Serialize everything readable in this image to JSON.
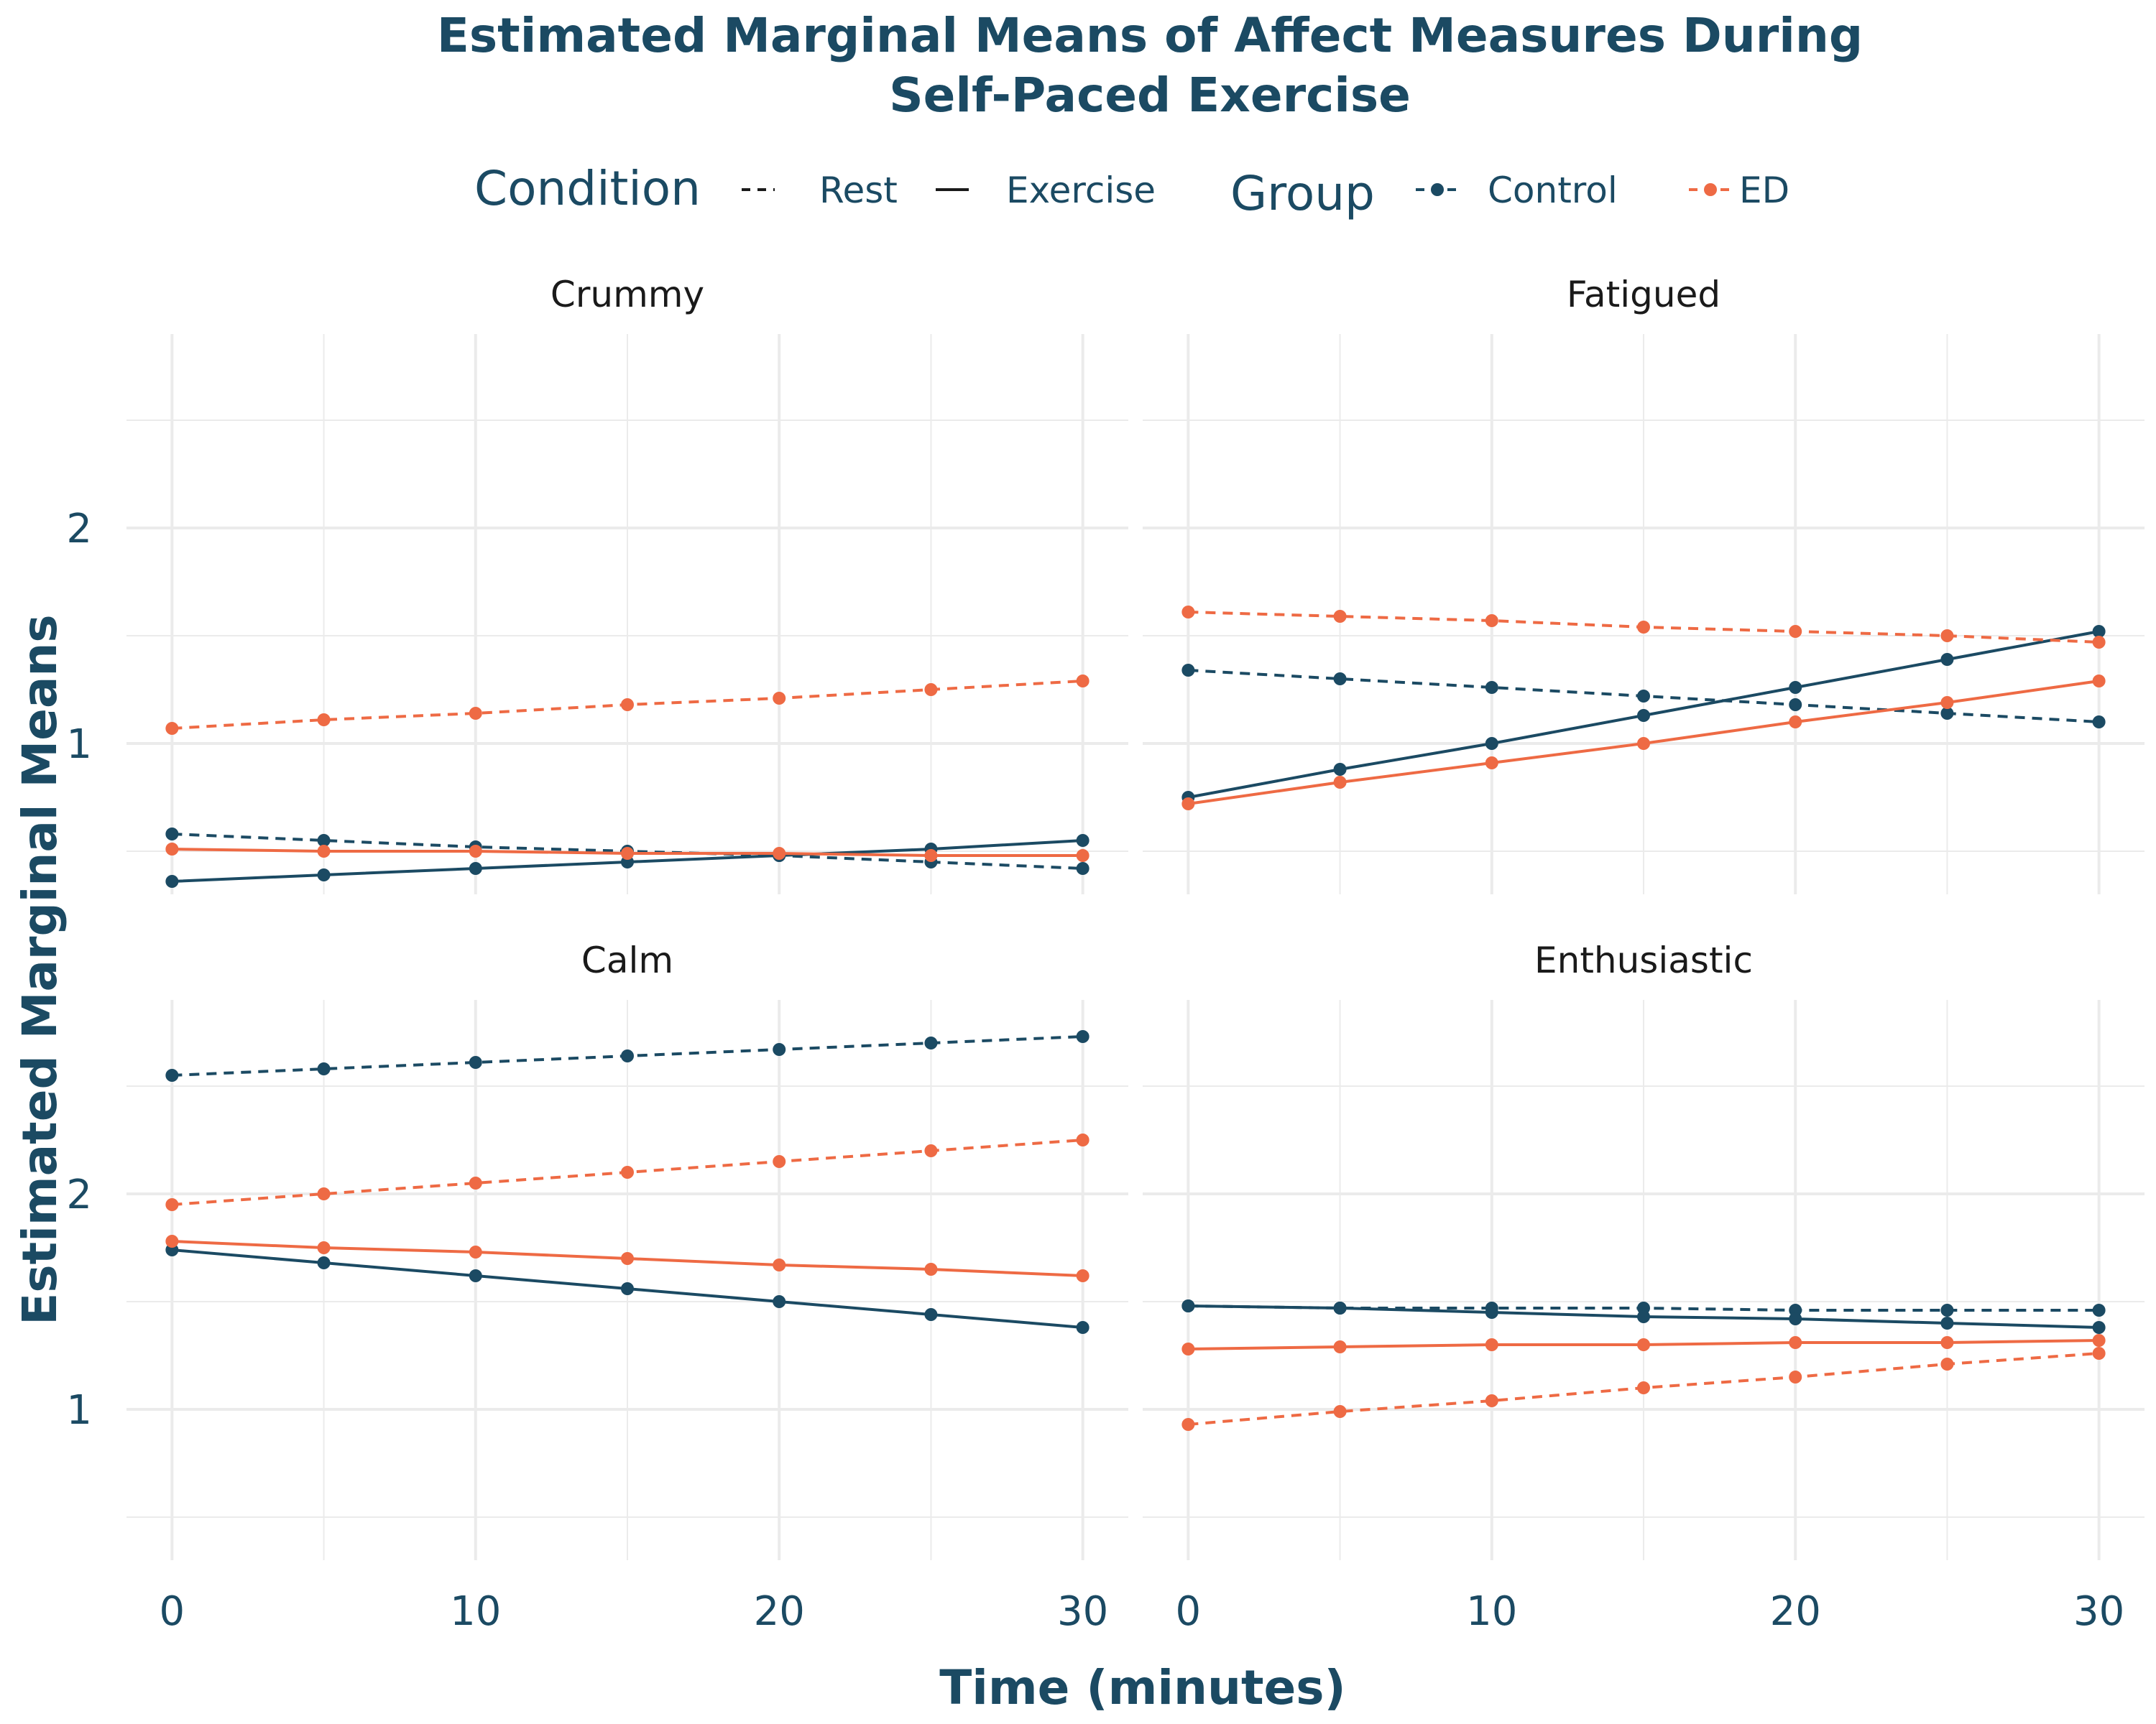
{
  "title_lines": [
    "Estimated Marginal Means of Affect Measures During",
    "Self-Paced Exercise"
  ],
  "legend": {
    "condition_title": "Condition",
    "conditions": [
      {
        "label": "Rest",
        "dash": "dashed"
      },
      {
        "label": "Exercise",
        "dash": "solid"
      }
    ],
    "group_title": "Group",
    "groups": [
      {
        "label": "Control",
        "color": "#1b4a63"
      },
      {
        "label": "ED",
        "color": "#ee6a44"
      }
    ]
  },
  "colors": {
    "Control": "#1b4a63",
    "ED": "#ee6a44",
    "grid": "#ebebeb",
    "text": "#1b4a63"
  },
  "chart_data": {
    "type": "line",
    "xlabel": "Time (minutes)",
    "ylabel": "Estimated Marginal Means",
    "x_ticks": [
      "0",
      "10",
      "20",
      "30"
    ],
    "y_ticks": [
      "1",
      "2"
    ],
    "xlim": [
      -1.5,
      31.5
    ],
    "ylim": [
      0.3,
      2.9
    ],
    "grid": true,
    "legend_position": "top",
    "x": [
      0,
      5,
      10,
      15,
      20,
      25,
      30
    ],
    "panels": [
      {
        "name": "Crummy",
        "series": [
          {
            "group": "Control",
            "condition": "Rest",
            "values": [
              0.58,
              0.55,
              0.52,
              0.5,
              0.48,
              0.45,
              0.42
            ]
          },
          {
            "group": "Control",
            "condition": "Exercise",
            "values": [
              0.36,
              0.39,
              0.42,
              0.45,
              0.48,
              0.51,
              0.55
            ]
          },
          {
            "group": "ED",
            "condition": "Rest",
            "values": [
              1.07,
              1.11,
              1.14,
              1.18,
              1.21,
              1.25,
              1.29
            ]
          },
          {
            "group": "ED",
            "condition": "Exercise",
            "values": [
              0.51,
              0.5,
              0.5,
              0.49,
              0.49,
              0.48,
              0.48
            ]
          }
        ]
      },
      {
        "name": "Fatigued",
        "series": [
          {
            "group": "Control",
            "condition": "Rest",
            "values": [
              1.34,
              1.3,
              1.26,
              1.22,
              1.18,
              1.14,
              1.1
            ]
          },
          {
            "group": "Control",
            "condition": "Exercise",
            "values": [
              0.75,
              0.88,
              1.0,
              1.13,
              1.26,
              1.39,
              1.52
            ]
          },
          {
            "group": "ED",
            "condition": "Rest",
            "values": [
              1.61,
              1.59,
              1.57,
              1.54,
              1.52,
              1.5,
              1.47
            ]
          },
          {
            "group": "ED",
            "condition": "Exercise",
            "values": [
              0.72,
              0.82,
              0.91,
              1.0,
              1.1,
              1.19,
              1.29
            ]
          }
        ]
      },
      {
        "name": "Calm",
        "series": [
          {
            "group": "Control",
            "condition": "Rest",
            "values": [
              2.55,
              2.58,
              2.61,
              2.64,
              2.67,
              2.7,
              2.73
            ]
          },
          {
            "group": "Control",
            "condition": "Exercise",
            "values": [
              1.74,
              1.68,
              1.62,
              1.56,
              1.5,
              1.44,
              1.38
            ]
          },
          {
            "group": "ED",
            "condition": "Rest",
            "values": [
              1.95,
              2.0,
              2.05,
              2.1,
              2.15,
              2.2,
              2.25
            ]
          },
          {
            "group": "ED",
            "condition": "Exercise",
            "values": [
              1.78,
              1.75,
              1.73,
              1.7,
              1.67,
              1.65,
              1.62
            ]
          }
        ]
      },
      {
        "name": "Enthusiastic",
        "series": [
          {
            "group": "Control",
            "condition": "Rest",
            "values": [
              1.48,
              1.47,
              1.47,
              1.47,
              1.46,
              1.46,
              1.46
            ]
          },
          {
            "group": "Control",
            "condition": "Exercise",
            "values": [
              1.48,
              1.47,
              1.45,
              1.43,
              1.42,
              1.4,
              1.38
            ]
          },
          {
            "group": "ED",
            "condition": "Rest",
            "values": [
              0.93,
              0.99,
              1.04,
              1.1,
              1.15,
              1.21,
              1.26
            ]
          },
          {
            "group": "ED",
            "condition": "Exercise",
            "values": [
              1.28,
              1.29,
              1.3,
              1.3,
              1.31,
              1.31,
              1.32
            ]
          }
        ]
      }
    ]
  }
}
